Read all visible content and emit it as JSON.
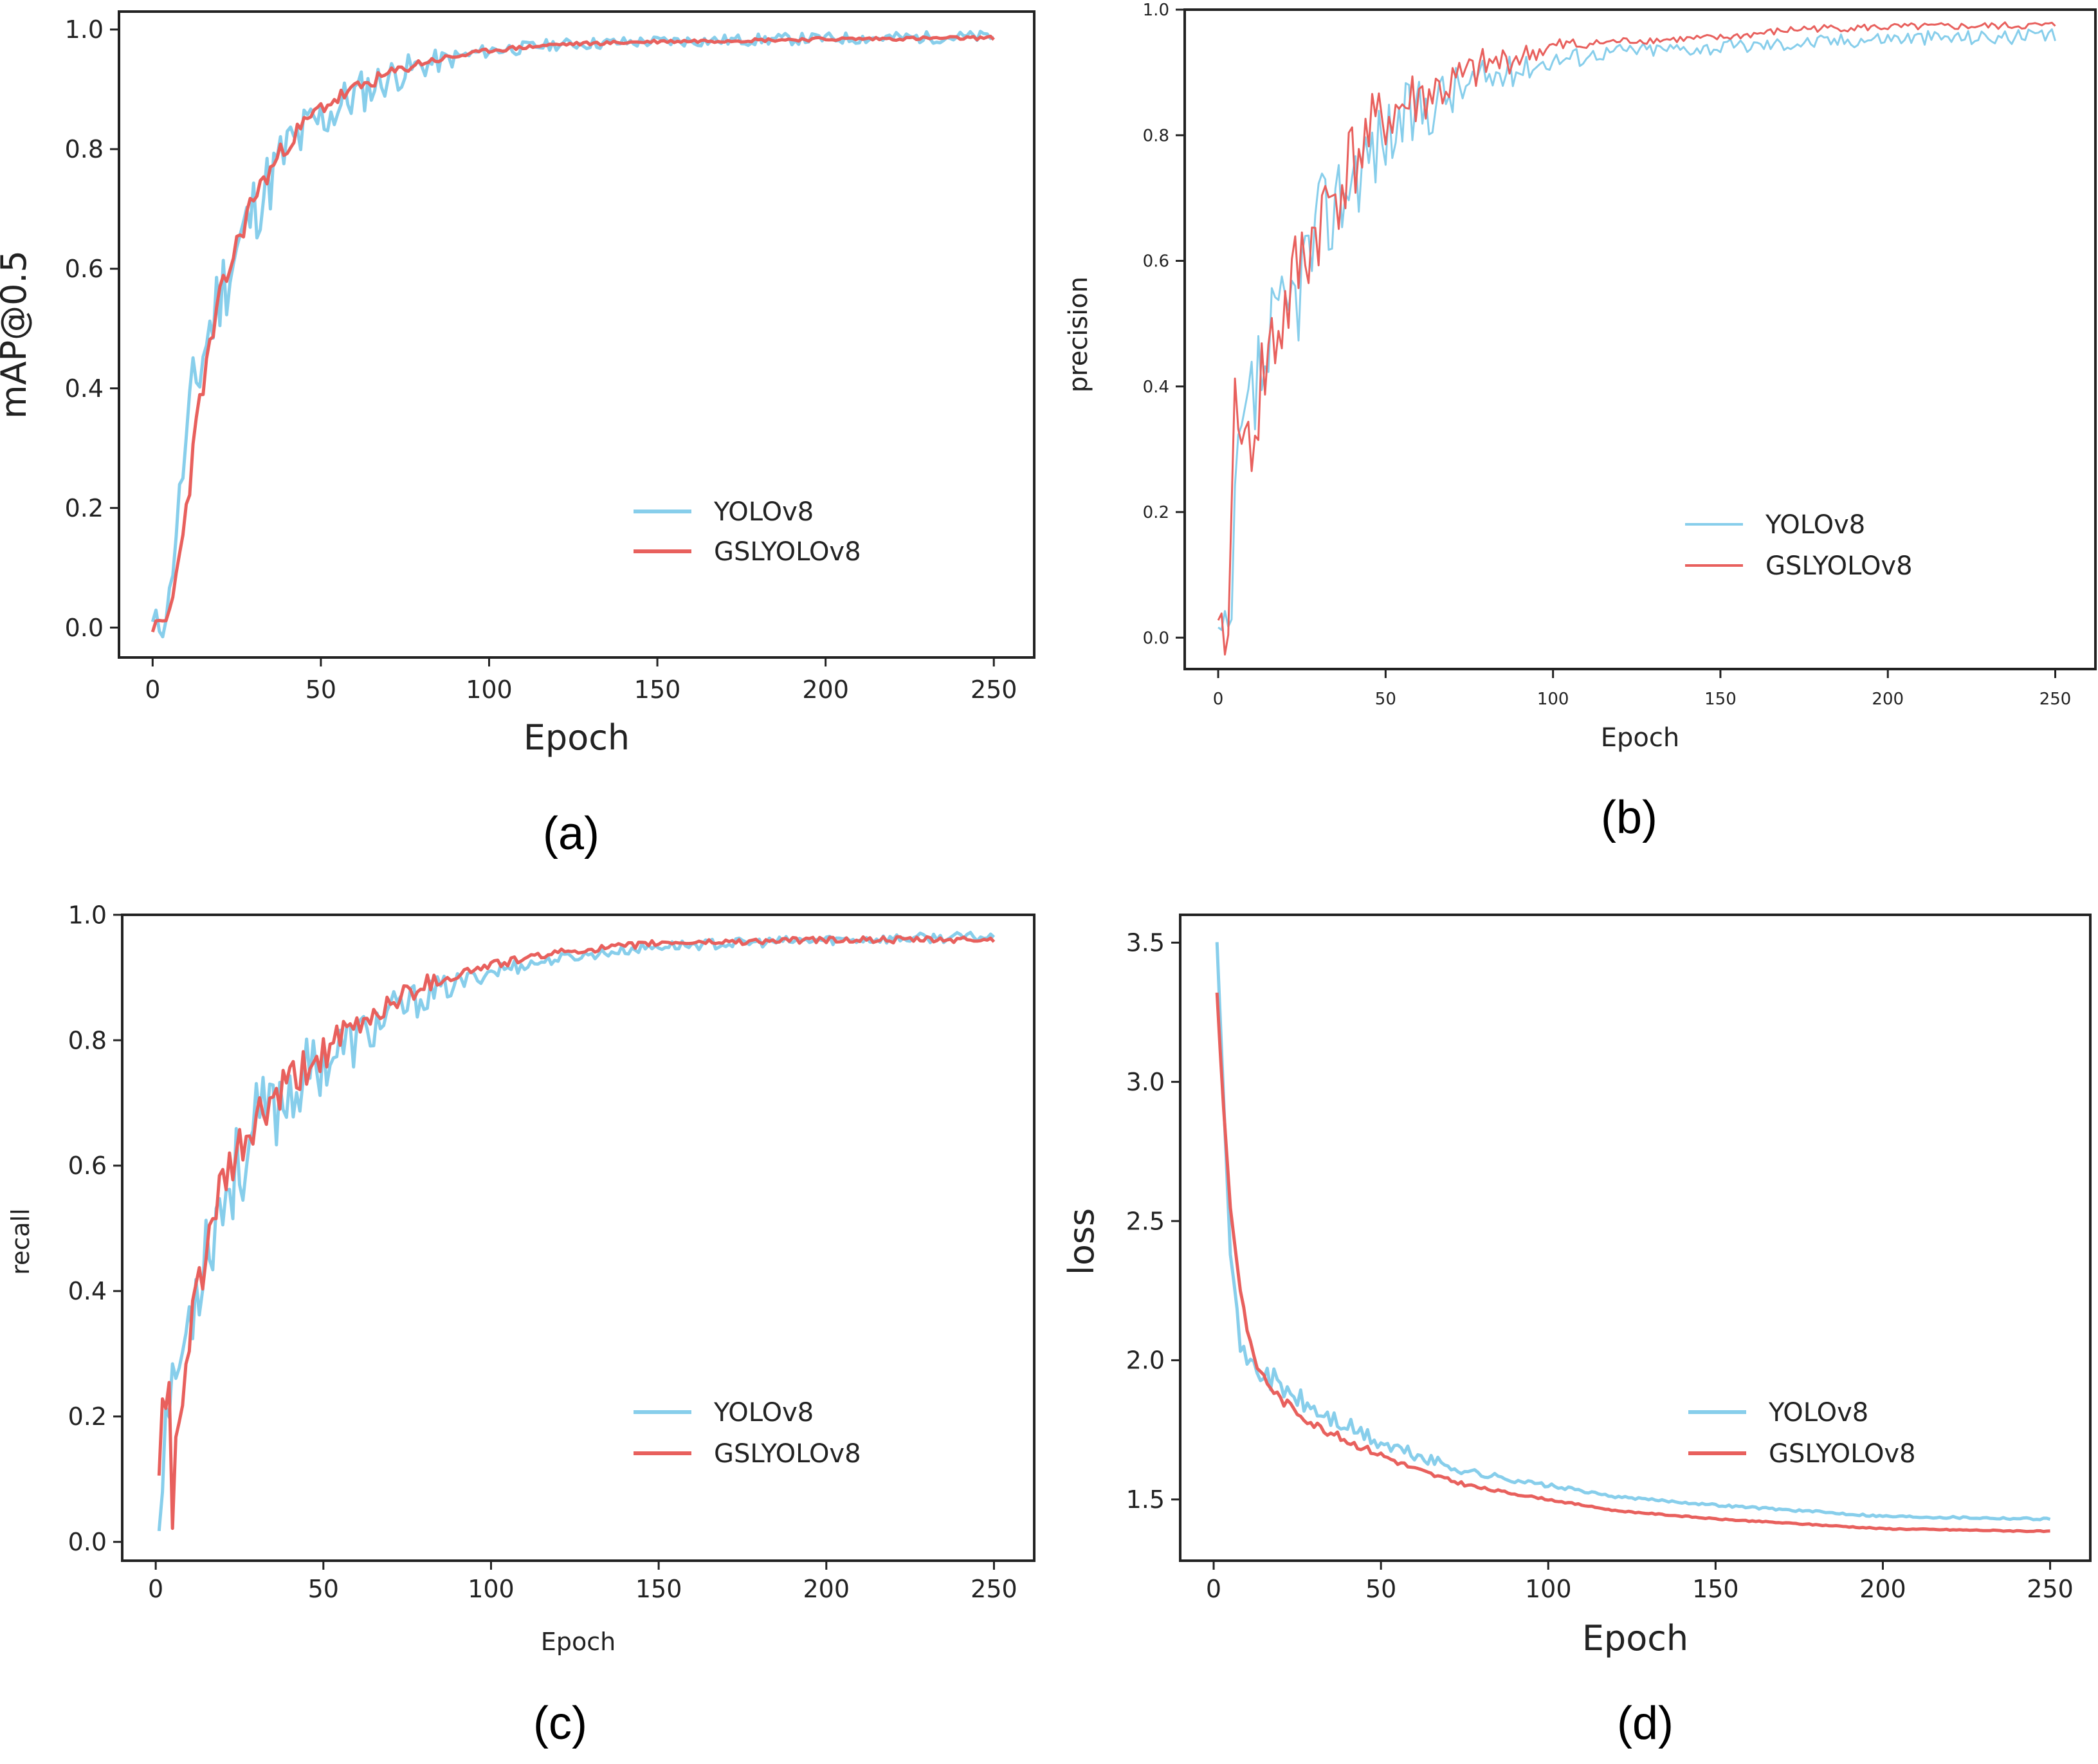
{
  "figure": {
    "labels": [
      "(a)",
      "(b)",
      "(c)",
      "(d)"
    ]
  },
  "chart_data": [
    {
      "type": "line",
      "panel": "(a)",
      "xlabel": "Epoch",
      "ylabel": "mAP@0.5",
      "xlim": [
        -10,
        262
      ],
      "ylim": [
        -0.05,
        1.03
      ],
      "xticks": [
        0,
        50,
        100,
        150,
        200,
        250
      ],
      "yticks": [
        0.0,
        0.2,
        0.4,
        0.6,
        0.8,
        1.0
      ],
      "xtick_labels": [
        "0",
        "50",
        "100",
        "150",
        "200",
        "250"
      ],
      "ytick_labels": [
        "0.0",
        "0.2",
        "0.4",
        "0.6",
        "0.8",
        "1.0"
      ],
      "legend": [
        "YOLOv8",
        "GSLYOLOv8"
      ],
      "legend_position": "lower-right",
      "colors": [
        "#87ceeb",
        "#e8605d"
      ],
      "series": [
        {
          "name": "YOLOv8",
          "anchors": [
            [
              0,
              0.0
            ],
            [
              3,
              0.01
            ],
            [
              5,
              0.05
            ],
            [
              8,
              0.22
            ],
            [
              12,
              0.38
            ],
            [
              15,
              0.46
            ],
            [
              20,
              0.56
            ],
            [
              25,
              0.63
            ],
            [
              30,
              0.7
            ],
            [
              40,
              0.8
            ],
            [
              50,
              0.85
            ],
            [
              60,
              0.89
            ],
            [
              70,
              0.92
            ],
            [
              80,
              0.94
            ],
            [
              100,
              0.965
            ],
            [
              120,
              0.975
            ],
            [
              150,
              0.98
            ],
            [
              200,
              0.985
            ],
            [
              250,
              0.988
            ]
          ],
          "noise": [
            0.08,
            0.01
          ],
          "seed": 11
        },
        {
          "name": "GSLYOLOv8",
          "anchors": [
            [
              0,
              0.0
            ],
            [
              4,
              0.01
            ],
            [
              6,
              0.05
            ],
            [
              10,
              0.2
            ],
            [
              14,
              0.38
            ],
            [
              20,
              0.55
            ],
            [
              25,
              0.64
            ],
            [
              30,
              0.72
            ],
            [
              40,
              0.81
            ],
            [
              50,
              0.87
            ],
            [
              60,
              0.9
            ],
            [
              70,
              0.925
            ],
            [
              80,
              0.945
            ],
            [
              100,
              0.965
            ],
            [
              120,
              0.975
            ],
            [
              150,
              0.98
            ],
            [
              200,
              0.984
            ],
            [
              250,
              0.986
            ]
          ],
          "noise": [
            0.025,
            0.003
          ],
          "seed": 23
        }
      ]
    },
    {
      "type": "line",
      "panel": "(b)",
      "xlabel": "Epoch",
      "ylabel": "precision",
      "xlim": [
        -10,
        262
      ],
      "ylim": [
        -0.05,
        1.0
      ],
      "xticks": [
        0,
        50,
        100,
        150,
        200,
        250
      ],
      "yticks": [
        0.0,
        0.2,
        0.4,
        0.6,
        0.8,
        1.0
      ],
      "xtick_labels": [
        "0",
        "50",
        "100",
        "150",
        "200",
        "250"
      ],
      "ytick_labels": [
        "0.0",
        "0.2",
        "0.4",
        "0.6",
        "0.8",
        "1.0"
      ],
      "legend": [
        "YOLOv8",
        "GSLYOLOv8"
      ],
      "legend_position": "lower-right",
      "colors": [
        "#87ceeb",
        "#e8605d"
      ],
      "series": [
        {
          "name": "YOLOv8",
          "anchors": [
            [
              0,
              0.0
            ],
            [
              4,
              0.0
            ],
            [
              5,
              0.25
            ],
            [
              8,
              0.35
            ],
            [
              12,
              0.4
            ],
            [
              15,
              0.45
            ],
            [
              20,
              0.5
            ],
            [
              25,
              0.58
            ],
            [
              30,
              0.65
            ],
            [
              40,
              0.74
            ],
            [
              50,
              0.8
            ],
            [
              60,
              0.84
            ],
            [
              70,
              0.87
            ],
            [
              80,
              0.89
            ],
            [
              100,
              0.92
            ],
            [
              120,
              0.935
            ],
            [
              150,
              0.94
            ],
            [
              200,
              0.955
            ],
            [
              250,
              0.957
            ]
          ],
          "noise": [
            0.11,
            0.012
          ],
          "seed": 37
        },
        {
          "name": "GSLYOLOv8",
          "anchors": [
            [
              0,
              0.0
            ],
            [
              3,
              0.0
            ],
            [
              5,
              0.4
            ],
            [
              8,
              0.3
            ],
            [
              12,
              0.38
            ],
            [
              15,
              0.45
            ],
            [
              20,
              0.52
            ],
            [
              25,
              0.6
            ],
            [
              30,
              0.66
            ],
            [
              40,
              0.76
            ],
            [
              50,
              0.83
            ],
            [
              60,
              0.86
            ],
            [
              70,
              0.88
            ],
            [
              80,
              0.91
            ],
            [
              100,
              0.94
            ],
            [
              120,
              0.95
            ],
            [
              150,
              0.955
            ],
            [
              175,
              0.97
            ],
            [
              200,
              0.972
            ],
            [
              250,
              0.975
            ]
          ],
          "noise": [
            0.1,
            0.006
          ],
          "seed": 41
        }
      ]
    },
    {
      "type": "line",
      "panel": "(c)",
      "xlabel": "Epoch",
      "ylabel": "recall",
      "xlim": [
        -10,
        262
      ],
      "ylim": [
        -0.03,
        1.0
      ],
      "xticks": [
        0,
        50,
        100,
        150,
        200,
        250
      ],
      "yticks": [
        0.0,
        0.2,
        0.4,
        0.6,
        0.8,
        1.0
      ],
      "xtick_labels": [
        "0",
        "50",
        "100",
        "150",
        "200",
        "250"
      ],
      "ytick_labels": [
        "0.0",
        "0.2",
        "0.4",
        "0.6",
        "0.8",
        "1.0"
      ],
      "legend": [
        "YOLOv8",
        "GSLYOLOv8"
      ],
      "legend_position": "lower-right",
      "colors": [
        "#87ceeb",
        "#e8605d"
      ],
      "series": [
        {
          "name": "YOLOv8",
          "anchors": [
            [
              1,
              0.03
            ],
            [
              3,
              0.2
            ],
            [
              5,
              0.25
            ],
            [
              8,
              0.3
            ],
            [
              12,
              0.42
            ],
            [
              15,
              0.48
            ],
            [
              20,
              0.55
            ],
            [
              25,
              0.6
            ],
            [
              30,
              0.66
            ],
            [
              40,
              0.72
            ],
            [
              50,
              0.77
            ],
            [
              60,
              0.8
            ],
            [
              70,
              0.84
            ],
            [
              80,
              0.87
            ],
            [
              100,
              0.91
            ],
            [
              120,
              0.93
            ],
            [
              150,
              0.95
            ],
            [
              200,
              0.96
            ],
            [
              250,
              0.965
            ]
          ],
          "noise": [
            0.09,
            0.008
          ],
          "seed": 53
        },
        {
          "name": "GSLYOLOv8",
          "anchors": [
            [
              1,
              0.1
            ],
            [
              2,
              0.22
            ],
            [
              4,
              0.24
            ],
            [
              5,
              0.02
            ],
            [
              6,
              0.15
            ],
            [
              8,
              0.22
            ],
            [
              12,
              0.4
            ],
            [
              15,
              0.47
            ],
            [
              20,
              0.56
            ],
            [
              25,
              0.62
            ],
            [
              30,
              0.67
            ],
            [
              40,
              0.73
            ],
            [
              50,
              0.78
            ],
            [
              60,
              0.82
            ],
            [
              70,
              0.86
            ],
            [
              80,
              0.89
            ],
            [
              100,
              0.92
            ],
            [
              120,
              0.94
            ],
            [
              150,
              0.955
            ],
            [
              200,
              0.96
            ],
            [
              250,
              0.96
            ]
          ],
          "noise": [
            0.05,
            0.005
          ],
          "seed": 61
        }
      ]
    },
    {
      "type": "line",
      "panel": "(d)",
      "xlabel": "Epoch",
      "ylabel": "loss",
      "xlim": [
        -10,
        262
      ],
      "ylim": [
        1.28,
        3.6
      ],
      "xticks": [
        0,
        50,
        100,
        150,
        200,
        250
      ],
      "yticks": [
        1.5,
        2.0,
        2.5,
        3.0,
        3.5
      ],
      "xtick_labels": [
        "0",
        "50",
        "100",
        "150",
        "200",
        "250"
      ],
      "ytick_labels": [
        "1.5",
        "2.0",
        "2.5",
        "3.0",
        "3.5"
      ],
      "legend": [
        "YOLOv8",
        "GSLYOLOv8"
      ],
      "legend_position": "lower-right",
      "colors": [
        "#87ceeb",
        "#e8605d"
      ],
      "series": [
        {
          "name": "YOLOv8",
          "anchors": [
            [
              1,
              3.52
            ],
            [
              3,
              2.95
            ],
            [
              5,
              2.4
            ],
            [
              8,
              2.05
            ],
            [
              12,
              1.97
            ],
            [
              16,
              1.95
            ],
            [
              20,
              1.9
            ],
            [
              30,
              1.82
            ],
            [
              40,
              1.76
            ],
            [
              50,
              1.7
            ],
            [
              60,
              1.66
            ],
            [
              70,
              1.62
            ],
            [
              80,
              1.59
            ],
            [
              100,
              1.55
            ],
            [
              120,
              1.51
            ],
            [
              150,
              1.48
            ],
            [
              200,
              1.44
            ],
            [
              250,
              1.43
            ]
          ],
          "noise": [
            0.05,
            0.004
          ],
          "seed": 71
        },
        {
          "name": "GSLYOLOv8",
          "anchors": [
            [
              1,
              3.32
            ],
            [
              3,
              2.9
            ],
            [
              5,
              2.55
            ],
            [
              8,
              2.25
            ],
            [
              12,
              2.0
            ],
            [
              16,
              1.92
            ],
            [
              20,
              1.86
            ],
            [
              30,
              1.77
            ],
            [
              40,
              1.71
            ],
            [
              50,
              1.66
            ],
            [
              60,
              1.61
            ],
            [
              70,
              1.57
            ],
            [
              80,
              1.54
            ],
            [
              100,
              1.5
            ],
            [
              120,
              1.46
            ],
            [
              150,
              1.43
            ],
            [
              200,
              1.395
            ],
            [
              250,
              1.385
            ]
          ],
          "noise": [
            0.02,
            0.002
          ],
          "seed": 83
        }
      ]
    }
  ]
}
